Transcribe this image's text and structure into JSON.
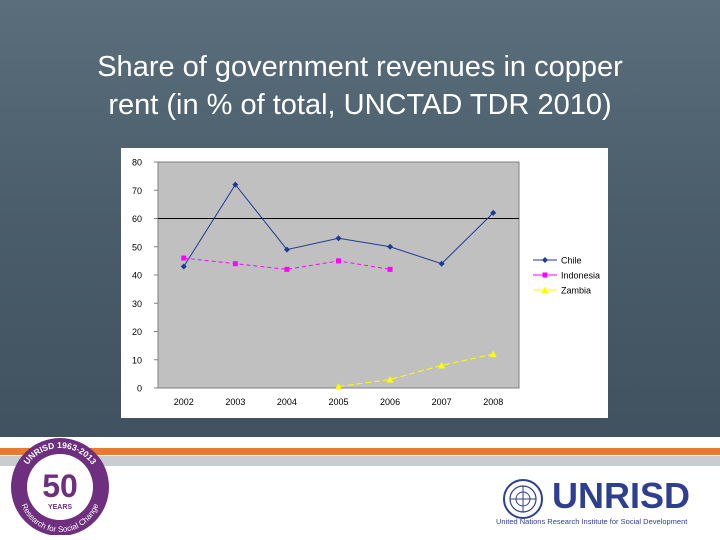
{
  "slide": {
    "title_line1": "Share of government revenues in copper",
    "title_line2": "rent (in % of total, UNCTAD TDR 2010)"
  },
  "chart_data": {
    "type": "line",
    "categories": [
      "2002",
      "2003",
      "2004",
      "2005",
      "2006",
      "2007",
      "2008"
    ],
    "series": [
      {
        "name": "Chile",
        "values": [
          43,
          72,
          49,
          53,
          50,
          44,
          62
        ],
        "color": "#1f3a93",
        "marker": "diamond"
      },
      {
        "name": "Indonesia",
        "values": [
          46,
          44,
          42,
          45,
          42,
          null,
          null
        ],
        "color": "#ff00ff",
        "marker": "square"
      },
      {
        "name": "Zambia",
        "values": [
          null,
          null,
          null,
          0.5,
          3,
          8,
          12
        ],
        "color": "#ffff00",
        "marker": "triangle"
      }
    ],
    "yticks": [
      "0",
      "10",
      "20",
      "30",
      "40",
      "50",
      "60",
      "70",
      "80"
    ],
    "ylim": [
      0,
      80
    ],
    "reference_line": 60,
    "legend_position": "right"
  },
  "footer": {
    "anniversary": {
      "ring_text": "UNRISD 1963-2013",
      "number": "50",
      "years": "YEARS",
      "tagline": "Research for Social Change"
    },
    "brand": "UNRISD",
    "brand_sub": "United Nations Research Institute for Social Development"
  }
}
